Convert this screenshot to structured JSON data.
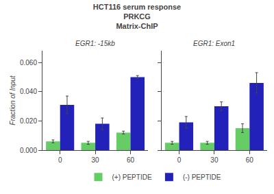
{
  "title": "HCT116 serum response\nPRKCG\nMatrix-ChIP",
  "chart_data": [
    {
      "type": "bar",
      "title": "EGR1: -15kb",
      "ylabel": "Fraction of Input",
      "categories": [
        "0",
        "30",
        "60"
      ],
      "series": [
        {
          "name": "(+) PEPTIDE",
          "color": "#66cc66",
          "values": [
            0.006,
            0.005,
            0.012
          ],
          "errors": [
            0.001,
            0.001,
            0.001
          ]
        },
        {
          "name": "(-) PEPTIDE",
          "color": "#2222bb",
          "values": [
            0.031,
            0.018,
            0.05
          ],
          "errors": [
            0.006,
            0.004,
            0.001
          ]
        }
      ],
      "ylim": [
        0,
        0.068
      ],
      "yticks": [
        {
          "value": 0.0,
          "label": "0.000"
        },
        {
          "value": 0.02,
          "label": "0.020"
        },
        {
          "value": 0.04,
          "label": "0.040"
        },
        {
          "value": 0.06,
          "label": "0.060"
        }
      ],
      "grid": false,
      "legend": "bottom"
    },
    {
      "type": "bar",
      "title": "EGR1: Exon1",
      "categories": [
        "0",
        "30",
        "60"
      ],
      "series": [
        {
          "name": "(+) PEPTIDE",
          "color": "#66cc66",
          "values": [
            0.005,
            0.005,
            0.015
          ],
          "errors": [
            0.001,
            0.001,
            0.003
          ]
        },
        {
          "name": "(-) PEPTIDE",
          "color": "#2222bb",
          "values": [
            0.019,
            0.03,
            0.046
          ],
          "errors": [
            0.004,
            0.003,
            0.007
          ]
        }
      ],
      "ylim": [
        0,
        0.068
      ],
      "yticks": [
        0.0,
        0.02,
        0.04,
        0.06
      ],
      "tick_labels": "x",
      "grid": false,
      "legend": "bottom"
    }
  ]
}
